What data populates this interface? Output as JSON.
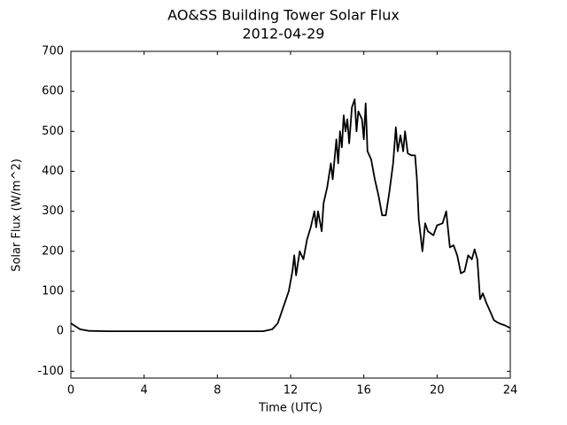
{
  "chart_data": {
    "type": "line",
    "title": "AO&SS Building Tower Solar Flux",
    "subtitle": "2012-04-29",
    "x_label": "Time (UTC)",
    "y_label": "Solar Flux (W/m^2)",
    "xlim": [
      0,
      24
    ],
    "xticks": [
      0,
      4,
      8,
      12,
      16,
      20,
      24
    ],
    "ylim": [
      -117,
      700
    ],
    "yticks": [
      -100,
      0,
      100,
      200,
      300,
      400,
      500,
      600,
      700
    ],
    "grid": false,
    "series": [
      {
        "name": "Solar Flux",
        "color": "#000000",
        "x": [
          0,
          0.5,
          1,
          2,
          4,
          6,
          8,
          10,
          10.5,
          11,
          11.3,
          11.6,
          11.9,
          12.1,
          12.2,
          12.3,
          12.5,
          12.7,
          12.9,
          13.1,
          13.3,
          13.4,
          13.5,
          13.7,
          13.8,
          14,
          14.2,
          14.3,
          14.4,
          14.5,
          14.6,
          14.7,
          14.8,
          14.9,
          15.0,
          15.1,
          15.2,
          15.35,
          15.5,
          15.6,
          15.7,
          15.9,
          16.0,
          16.1,
          16.2,
          16.4,
          16.6,
          16.8,
          17.0,
          17.2,
          17.4,
          17.6,
          17.75,
          17.85,
          18.0,
          18.15,
          18.25,
          18.4,
          18.6,
          18.8,
          18.9,
          19.0,
          19.2,
          19.35,
          19.5,
          19.8,
          20.0,
          20.3,
          20.5,
          20.7,
          20.9,
          21.1,
          21.3,
          21.5,
          21.7,
          21.9,
          22.05,
          22.2,
          22.35,
          22.5,
          22.7,
          22.9,
          23.1,
          23.3,
          23.5,
          23.7,
          24
        ],
        "values": [
          20,
          5,
          1,
          0,
          0,
          0,
          0,
          0,
          0,
          5,
          20,
          60,
          100,
          150,
          190,
          140,
          200,
          180,
          230,
          260,
          300,
          260,
          300,
          250,
          320,
          360,
          420,
          380,
          430,
          480,
          420,
          500,
          460,
          540,
          500,
          530,
          470,
          560,
          580,
          500,
          550,
          530,
          480,
          570,
          450,
          430,
          380,
          340,
          290,
          290,
          350,
          420,
          510,
          450,
          490,
          450,
          500,
          445,
          440,
          440,
          380,
          280,
          200,
          270,
          250,
          240,
          265,
          270,
          300,
          210,
          215,
          190,
          145,
          150,
          190,
          180,
          205,
          180,
          80,
          95,
          70,
          50,
          28,
          22,
          18,
          15,
          8
        ]
      }
    ]
  }
}
